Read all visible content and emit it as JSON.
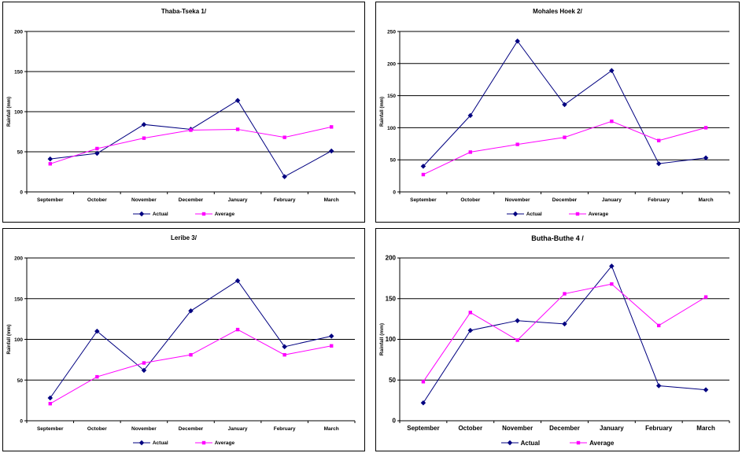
{
  "page": {
    "background": "#FFFFFF",
    "axis_color": "#000000",
    "text_color": "#000000"
  },
  "chart_data": [
    {
      "type": "line",
      "title": "Thaba-Tseka 1/",
      "ylabel": "Rainfall (mm)",
      "categories": [
        "September",
        "October",
        "November",
        "December",
        "January",
        "February",
        "March"
      ],
      "ylim": [
        0,
        200
      ],
      "yticks": [
        0,
        50,
        100,
        150,
        200
      ],
      "grid": true,
      "legend_position": "bottom",
      "series": [
        {
          "name": "Actual",
          "color": "#000080",
          "marker": "diamond",
          "values": [
            41,
            48,
            84,
            78,
            114,
            19,
            51
          ]
        },
        {
          "name": "Average",
          "color": "#FF00FF",
          "marker": "square",
          "values": [
            35,
            54,
            67,
            77,
            78,
            68,
            81
          ]
        }
      ]
    },
    {
      "type": "line",
      "title": "Mohales Hoek 2/",
      "ylabel": "Rainfall (mm)",
      "categories": [
        "September",
        "October",
        "November",
        "December",
        "January",
        "February",
        "March"
      ],
      "ylim": [
        0,
        250
      ],
      "yticks": [
        0,
        50,
        100,
        150,
        200,
        250
      ],
      "grid": true,
      "legend_position": "bottom",
      "series": [
        {
          "name": "Actual",
          "color": "#000080",
          "marker": "diamond",
          "values": [
            40,
            119,
            235,
            136,
            189,
            44,
            53
          ]
        },
        {
          "name": "Average",
          "color": "#FF00FF",
          "marker": "square",
          "values": [
            27,
            62,
            74,
            85,
            110,
            80,
            100
          ]
        }
      ]
    },
    {
      "type": "line",
      "title": "Leribe 3/",
      "ylabel": "Rainfall (mm)",
      "categories": [
        "September",
        "October",
        "November",
        "December",
        "January",
        "February",
        "March"
      ],
      "ylim": [
        0,
        200
      ],
      "yticks": [
        0,
        50,
        100,
        150,
        200
      ],
      "grid": true,
      "legend_position": "bottom",
      "series": [
        {
          "name": "Actual",
          "color": "#000080",
          "marker": "diamond",
          "values": [
            28,
            110,
            62,
            135,
            172,
            91,
            104
          ]
        },
        {
          "name": "Average",
          "color": "#FF00FF",
          "marker": "square",
          "values": [
            21,
            54,
            71,
            81,
            112,
            81,
            92
          ]
        }
      ]
    },
    {
      "type": "line",
      "title": "Butha-Buthe 4 /",
      "ylabel": "Rainfall (mm)",
      "categories": [
        "September",
        "October",
        "November",
        "December",
        "January",
        "February",
        "March"
      ],
      "ylim": [
        0,
        200
      ],
      "yticks": [
        0,
        50,
        100,
        150,
        200
      ],
      "grid": true,
      "legend_position": "bottom",
      "series": [
        {
          "name": "Actual",
          "color": "#000080",
          "marker": "diamond",
          "values": [
            22,
            111,
            123,
            119,
            190,
            43,
            38
          ]
        },
        {
          "name": "Average",
          "color": "#FF00FF",
          "marker": "square",
          "values": [
            48,
            133,
            99,
            156,
            168,
            117,
            152
          ]
        }
      ]
    }
  ]
}
